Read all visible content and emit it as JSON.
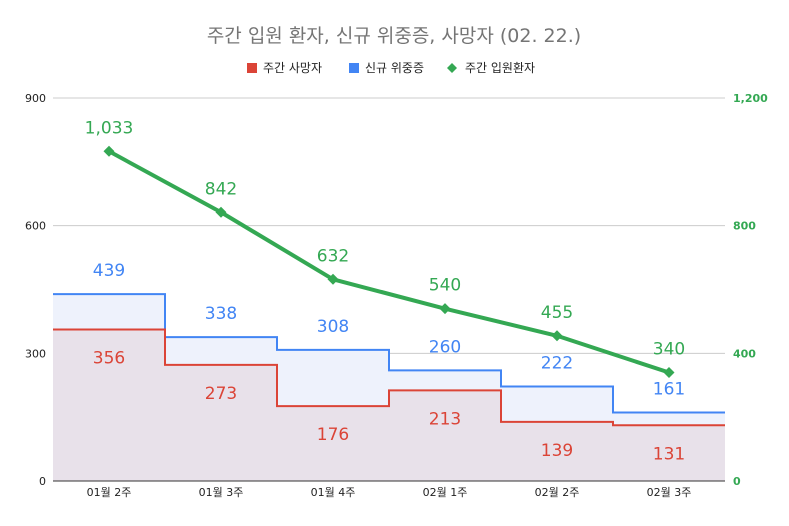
{
  "chart_data": {
    "type": "step-area + line",
    "title": "주간 입원 환자, 신규 위중증, 사망자 (02. 22.)",
    "categories": [
      "01월 2주",
      "01월 3주",
      "01월 4주",
      "02월 1주",
      "02월 2주",
      "02월 3주"
    ],
    "series": [
      {
        "name": "주간 사망자",
        "type": "stepped-area",
        "axis": "left",
        "values": [
          356,
          273,
          176,
          213,
          139,
          131
        ]
      },
      {
        "name": "신규 위중증",
        "type": "stepped-area",
        "axis": "left",
        "values": [
          439,
          338,
          308,
          260,
          222,
          161
        ]
      },
      {
        "name": "주간 입원환자",
        "type": "line",
        "axis": "right",
        "values": [
          1033,
          842,
          632,
          540,
          455,
          340
        ]
      }
    ],
    "data_labels": {
      "주간 사망자": [
        "356",
        "273",
        "176",
        "213",
        "139",
        "131"
      ],
      "신규 위중증": [
        "439",
        "338",
        "308",
        "260",
        "222",
        "161"
      ],
      "주간 입원환자": [
        "1,033",
        "842",
        "632",
        "540",
        "455",
        "340"
      ]
    },
    "left_axis": {
      "ylim": [
        0,
        900
      ],
      "ticks": [
        "0",
        "300",
        "600",
        "900"
      ]
    },
    "right_axis": {
      "ylim": [
        0,
        1200
      ],
      "ticks": [
        "0",
        "400",
        "800",
        "1,200"
      ]
    },
    "grid": true,
    "legend_position": "top"
  },
  "colors": {
    "deaths": "#db4437",
    "severe": "#4285f4",
    "hospitalized": "#34a853",
    "deaths_fill": "#e8e1ea",
    "severe_fill": "#eef2fc",
    "grid": "#cccccc",
    "axis": "#333333"
  }
}
